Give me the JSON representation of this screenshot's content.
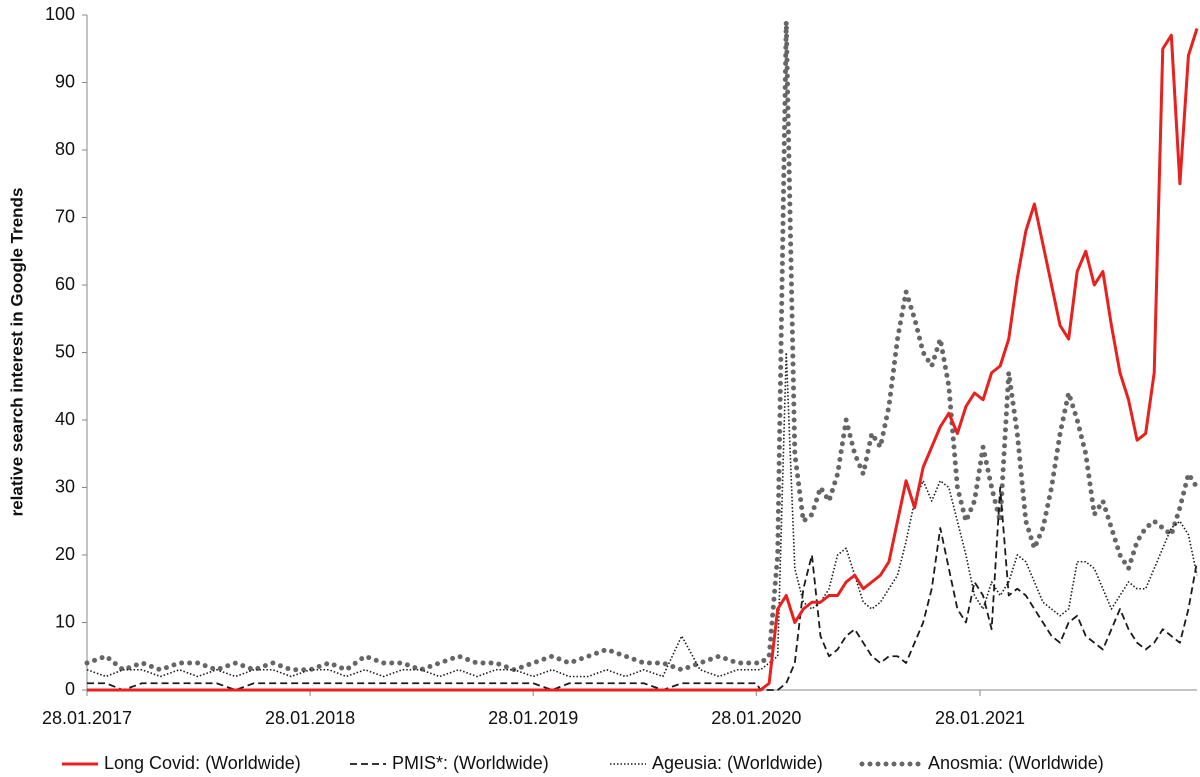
{
  "chart_data": {
    "type": "line",
    "y_label": "relative search interest in Google Trends",
    "x": [
      "2017-01-28",
      "2017-02-28",
      "2017-03-28",
      "2017-04-28",
      "2017-05-28",
      "2017-06-28",
      "2017-07-28",
      "2017-08-28",
      "2017-09-28",
      "2017-10-28",
      "2017-11-28",
      "2017-12-28",
      "2018-01-28",
      "2018-02-28",
      "2018-03-28",
      "2018-04-28",
      "2018-05-28",
      "2018-06-28",
      "2018-07-28",
      "2018-08-28",
      "2018-09-28",
      "2018-10-28",
      "2018-11-28",
      "2018-12-28",
      "2019-01-28",
      "2019-02-28",
      "2019-03-28",
      "2019-04-28",
      "2019-05-28",
      "2019-06-28",
      "2019-07-28",
      "2019-08-28",
      "2019-09-28",
      "2019-10-28",
      "2019-11-28",
      "2019-12-28",
      "2020-01-28",
      "2020-02-04",
      "2020-02-18",
      "2020-03-03",
      "2020-03-17",
      "2020-03-31",
      "2020-04-14",
      "2020-04-28",
      "2020-05-12",
      "2020-05-26",
      "2020-06-09",
      "2020-06-23",
      "2020-07-07",
      "2020-07-21",
      "2020-08-04",
      "2020-08-18",
      "2020-09-01",
      "2020-09-15",
      "2020-09-29",
      "2020-10-13",
      "2020-10-27",
      "2020-11-10",
      "2020-11-24",
      "2020-12-08",
      "2020-12-22",
      "2021-01-05",
      "2021-01-19",
      "2021-02-02",
      "2021-02-16",
      "2021-03-02",
      "2021-03-16",
      "2021-03-30",
      "2021-04-13",
      "2021-04-27",
      "2021-05-11",
      "2021-05-25",
      "2021-06-08",
      "2021-06-22",
      "2021-07-06",
      "2021-07-20",
      "2021-08-03",
      "2021-08-17",
      "2021-08-31",
      "2021-09-14",
      "2021-09-28",
      "2021-10-12",
      "2021-10-26",
      "2021-11-09",
      "2021-11-23",
      "2021-12-07",
      "2021-12-21",
      "2022-01-04",
      "2022-01-18"
    ],
    "series": [
      {
        "name": "Long Covid: (Worldwide)",
        "color": "#e8201e",
        "style": "solid",
        "values": [
          0,
          0,
          0,
          0,
          0,
          0,
          0,
          0,
          0,
          0,
          0,
          0,
          0,
          0,
          0,
          0,
          0,
          0,
          0,
          0,
          0,
          0,
          0,
          0,
          0,
          0,
          0,
          0,
          0,
          0,
          0,
          0,
          0,
          0,
          0,
          0,
          0,
          0,
          1,
          12,
          14,
          10,
          12,
          13,
          13,
          14,
          14,
          16,
          17,
          15,
          16,
          17,
          19,
          25,
          31,
          27,
          33,
          36,
          39,
          41,
          38,
          42,
          44,
          43,
          47,
          48,
          52,
          61,
          68,
          72,
          66,
          60,
          54,
          52,
          62,
          65,
          60,
          62,
          54,
          47,
          43,
          37,
          38,
          47,
          95,
          97,
          75,
          94,
          98
        ]
      },
      {
        "name": "PMIS*: (Worldwide)",
        "color": "#1a1a1a",
        "style": "dashed",
        "values": [
          1,
          1,
          0,
          1,
          1,
          1,
          1,
          1,
          0,
          1,
          1,
          1,
          1,
          1,
          1,
          1,
          1,
          1,
          1,
          1,
          1,
          1,
          1,
          1,
          1,
          0,
          1,
          1,
          1,
          1,
          1,
          0,
          1,
          1,
          1,
          1,
          1,
          0,
          0,
          0,
          1,
          4,
          15,
          20,
          8,
          5,
          6,
          8,
          9,
          7,
          5,
          4,
          5,
          5,
          4,
          7,
          10,
          15,
          24,
          18,
          12,
          10,
          16,
          14,
          9,
          30,
          14,
          15,
          14,
          12,
          10,
          8,
          7,
          10,
          11,
          8,
          7,
          6,
          9,
          12,
          9,
          7,
          6,
          7,
          9,
          8,
          7,
          12,
          19
        ]
      },
      {
        "name": "Ageusia: (Worldwide)",
        "color": "#1a1a1a",
        "style": "dotted",
        "values": [
          3,
          2,
          3,
          3,
          2,
          3,
          2,
          3,
          2,
          3,
          3,
          2,
          3,
          3,
          2,
          3,
          2,
          3,
          3,
          2,
          3,
          2,
          3,
          3,
          2,
          3,
          2,
          2,
          3,
          2,
          3,
          2,
          8,
          3,
          2,
          3,
          3,
          3,
          4,
          5,
          50,
          18,
          13,
          12,
          13,
          15,
          20,
          21,
          17,
          13,
          12,
          13,
          15,
          17,
          22,
          28,
          31,
          28,
          31,
          30,
          25,
          20,
          14,
          12,
          16,
          14,
          16,
          20,
          19,
          16,
          13,
          12,
          11,
          12,
          19,
          19,
          18,
          15,
          12,
          14,
          16,
          15,
          15,
          18,
          21,
          24,
          25,
          23,
          17
        ]
      },
      {
        "name": "Anosmia: (Worldwide)",
        "color": "#666666",
        "style": "dots",
        "values": [
          4,
          5,
          3,
          4,
          3,
          4,
          4,
          3,
          4,
          3,
          4,
          3,
          3,
          4,
          3,
          5,
          4,
          4,
          3,
          4,
          5,
          4,
          4,
          3,
          4,
          5,
          4,
          5,
          6,
          5,
          4,
          4,
          3,
          4,
          5,
          4,
          4,
          4,
          5,
          20,
          99,
          35,
          25,
          26,
          30,
          28,
          32,
          40,
          35,
          32,
          38,
          36,
          42,
          52,
          59,
          55,
          50,
          48,
          52,
          45,
          30,
          25,
          28,
          36,
          30,
          25,
          47,
          38,
          25,
          21,
          24,
          30,
          38,
          44,
          40,
          35,
          26,
          28,
          24,
          20,
          18,
          22,
          24,
          25,
          24,
          23,
          27,
          32,
          30
        ]
      }
    ],
    "xlim": [
      "2017-01-28",
      "2022-01-18"
    ],
    "xticks": [
      {
        "value": "2017-01-28",
        "label": "28.01.2017"
      },
      {
        "value": "2018-01-28",
        "label": "28.01.2018"
      },
      {
        "value": "2019-01-28",
        "label": "28.01.2019"
      },
      {
        "value": "2020-01-28",
        "label": "28.01.2020"
      },
      {
        "value": "2021-01-28",
        "label": "28.01.2021"
      }
    ],
    "ylim": [
      0,
      100
    ],
    "yticks": [
      0,
      10,
      20,
      30,
      40,
      50,
      60,
      70,
      80,
      90,
      100
    ],
    "grid": false,
    "legend": "bottom"
  }
}
